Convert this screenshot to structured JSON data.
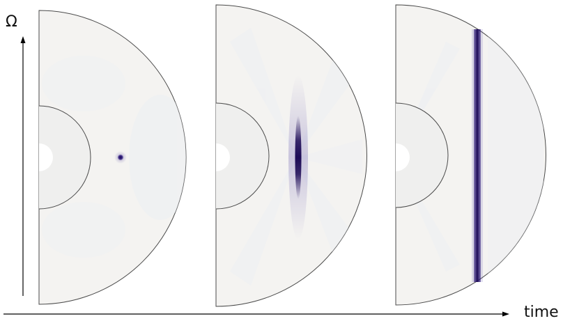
{
  "axes": {
    "vertical_label": "Ω",
    "horizontal_label": "time"
  },
  "panels": [
    {
      "name": "panel-1",
      "disturbance": "point"
    },
    {
      "name": "panel-2",
      "disturbance": "short-vertical-streak"
    },
    {
      "name": "panel-3",
      "disturbance": "full-vertical-line"
    }
  ],
  "colors": {
    "shell_fill": "#f4f3f1",
    "shell_stroke": "#4a4a4a",
    "disturbance": "#1c0a55",
    "axis": "#000000"
  }
}
